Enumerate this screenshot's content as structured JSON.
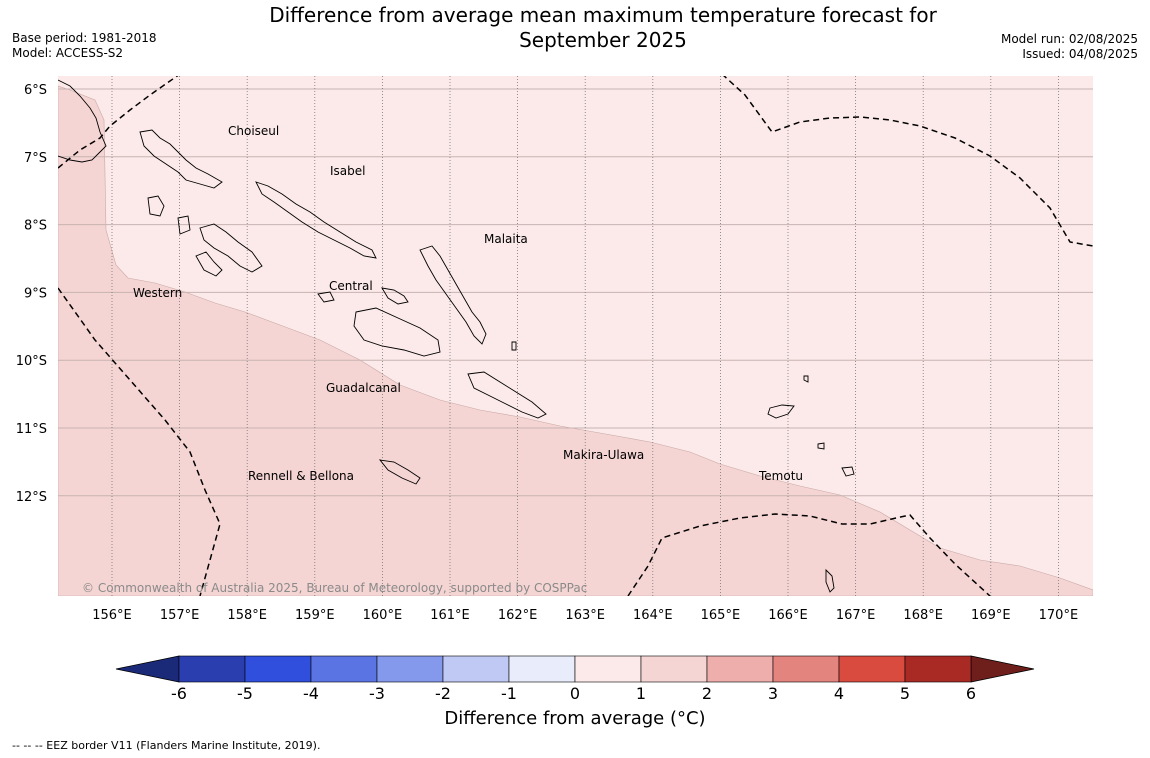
{
  "header": {
    "title_line1": "Difference from average mean maximum temperature forecast for",
    "title_line2": "September 2025",
    "base_period": "Base period: 1981-2018",
    "model": "Model: ACCESS-S2",
    "model_run": "Model run: 02/08/2025",
    "issued": "Issued: 04/08/2025"
  },
  "map": {
    "lat_labels": [
      "6°S",
      "7°S",
      "8°S",
      "9°S",
      "10°S",
      "11°S",
      "12°S"
    ],
    "lon_labels": [
      "156°E",
      "157°E",
      "158°E",
      "159°E",
      "160°E",
      "161°E",
      "162°E",
      "163°E",
      "164°E",
      "165°E",
      "166°E",
      "167°E",
      "168°E",
      "169°E",
      "170°E"
    ],
    "places": [
      "Choiseul",
      "Isabel",
      "Malaita",
      "Central",
      "Western",
      "Guadalcanal",
      "Makira-Ulawa",
      "Rennell & Bellona",
      "Temotu"
    ],
    "copyright": "© Commonwealth of Australia 2025, Bureau of Meteorology, supported by COSPPac",
    "shading": {
      "0_to_1": "#fbeae9",
      "1_to_2": "#f5d5d3"
    }
  },
  "colorbar": {
    "ticks": [
      "-6",
      "-5",
      "-4",
      "-3",
      "-2",
      "-1",
      "0",
      "1",
      "2",
      "3",
      "4",
      "5",
      "6"
    ],
    "colors": [
      "#2a3eb0",
      "#2f4fdc",
      "#5a74e3",
      "#8498ec",
      "#c0c9f3",
      "#e8ecfb",
      "#fbeae9",
      "#f5d5d3",
      "#edaeac",
      "#e3847f",
      "#d94a3f",
      "#a92a24"
    ],
    "under_color": "#1a2a78",
    "over_color": "#6e1e1b",
    "label": "Difference from average (°C)"
  },
  "footnote": "--  --  -- EEZ border V11 (Flanders Marine Institute, 2019)."
}
